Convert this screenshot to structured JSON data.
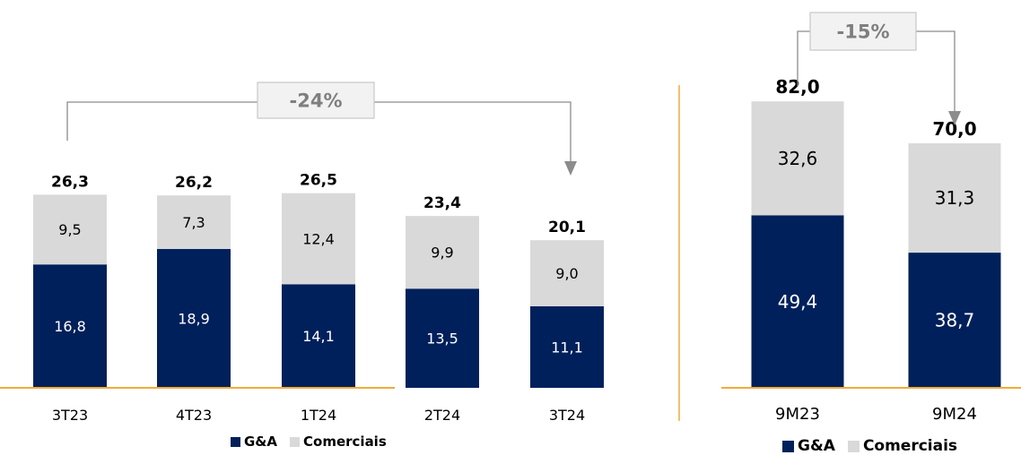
{
  "colors": {
    "ga": "#00205b",
    "comerciais": "#d9d9d9",
    "axis": "#f0ab3b",
    "bracket": "#8c8c8c",
    "badge_text": "#7f7f7f",
    "badge_border": "#c8c8c8",
    "badge_fill": "#f2f2f2"
  },
  "legend": {
    "ga_label": "G&A",
    "comerciais_label": "Comerciais"
  },
  "chart_data": [
    {
      "type": "bar",
      "stacked": true,
      "categories": [
        "3T23",
        "4T23",
        "1T24",
        "2T24",
        "3T24"
      ],
      "series": [
        {
          "name": "G&A",
          "values": [
            16.8,
            18.9,
            14.1,
            13.5,
            11.1
          ],
          "labels": [
            "16,8",
            "18,9",
            "14,1",
            "13,5",
            "11,1"
          ]
        },
        {
          "name": "Comerciais",
          "values": [
            9.5,
            7.3,
            12.4,
            9.9,
            9.0
          ],
          "labels": [
            "9,5",
            "7,3",
            "12,4",
            "9,9",
            "9,0"
          ]
        }
      ],
      "totals": [
        26.3,
        26.2,
        26.5,
        23.4,
        20.1
      ],
      "total_labels": [
        "26,3",
        "26,2",
        "26,5",
        "23,4",
        "20,1"
      ],
      "change_label": "-24%",
      "change_from": "3T23",
      "change_to": "3T24",
      "ylim": [
        0,
        30
      ]
    },
    {
      "type": "bar",
      "stacked": true,
      "categories": [
        "9M23",
        "9M24"
      ],
      "series": [
        {
          "name": "G&A",
          "values": [
            49.4,
            38.7
          ],
          "labels": [
            "49,4",
            "38,7"
          ]
        },
        {
          "name": "Comerciais",
          "values": [
            32.6,
            31.3
          ],
          "labels": [
            "32,6",
            "31,3"
          ]
        }
      ],
      "totals": [
        82.0,
        70.0
      ],
      "total_labels": [
        "82,0",
        "70,0"
      ],
      "change_label": "-15%",
      "change_from": "9M23",
      "change_to": "9M24",
      "ylim": [
        0,
        92
      ]
    }
  ]
}
